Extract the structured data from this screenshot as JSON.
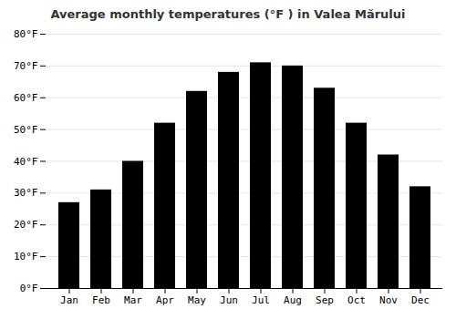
{
  "chart_data": {
    "type": "bar",
    "title": "Average monthly temperatures (°F ) in Valea Mărului",
    "categories": [
      "Jan",
      "Feb",
      "Mar",
      "Apr",
      "May",
      "Jun",
      "Jul",
      "Aug",
      "Sep",
      "Oct",
      "Nov",
      "Dec"
    ],
    "values": [
      27,
      31,
      40,
      52,
      62,
      68,
      71,
      70,
      63,
      52,
      42,
      32
    ],
    "ylim": [
      0,
      80
    ],
    "yticks": [
      {
        "value": 0,
        "label": "0°F"
      },
      {
        "value": 10,
        "label": "10°F"
      },
      {
        "value": 20,
        "label": "20°F"
      },
      {
        "value": 30,
        "label": "30°F"
      },
      {
        "value": 40,
        "label": "40°F"
      },
      {
        "value": 50,
        "label": "50°F"
      },
      {
        "value": 60,
        "label": "60°F"
      },
      {
        "value": 70,
        "label": "70°F"
      },
      {
        "value": 80,
        "label": "80°F"
      }
    ],
    "grid": true
  }
}
